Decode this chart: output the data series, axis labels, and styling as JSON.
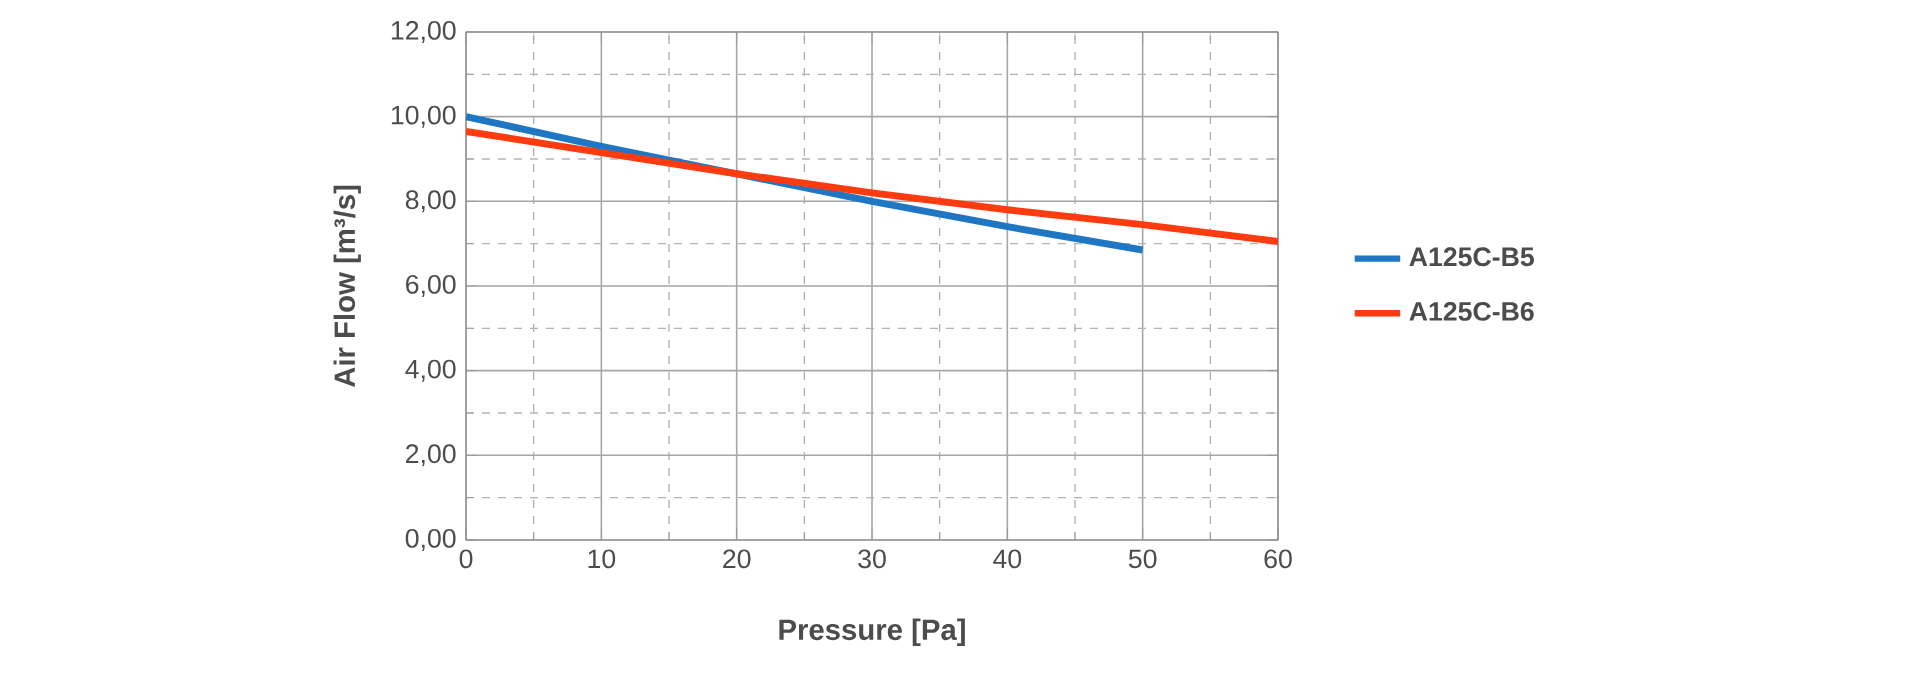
{
  "chart_data": {
    "type": "line",
    "xlabel": "Pressure [Pa]",
    "ylabel": "Air Flow [m³/s]",
    "series": [
      {
        "name": "A125C-B5",
        "color": "#1f77c4",
        "x": [
          0,
          10,
          20,
          30,
          40,
          50
        ],
        "values": [
          10.0,
          9.3,
          8.65,
          8.0,
          7.4,
          6.85
        ]
      },
      {
        "name": "A125C-B6",
        "color": "#ff3b0f",
        "x": [
          0,
          10,
          20,
          30,
          40,
          50,
          60
        ],
        "values": [
          9.65,
          9.15,
          8.65,
          8.2,
          7.8,
          7.45,
          7.05
        ]
      }
    ],
    "xlim": [
      0,
      60
    ],
    "xticks": [
      0,
      {
        "value": 5,
        "label": null
      },
      10,
      {
        "value": 15,
        "label": null
      },
      20,
      {
        "value": 25,
        "label": null
      },
      30,
      {
        "value": 35,
        "label": null
      },
      40,
      {
        "value": 45,
        "label": null
      },
      50,
      {
        "value": 55,
        "label": null
      },
      60
    ],
    "ylim": [
      0,
      12
    ],
    "yticks": [
      {
        "value": 0,
        "label": "0,00"
      },
      {
        "value": 1,
        "label": null
      },
      {
        "value": 2,
        "label": "2,00"
      },
      {
        "value": 3,
        "label": null
      },
      {
        "value": 4,
        "label": "4,00"
      },
      {
        "value": 5,
        "label": null
      },
      {
        "value": 6,
        "label": "6,00"
      },
      {
        "value": 7,
        "label": null
      },
      {
        "value": 8,
        "label": "8,00"
      },
      {
        "value": 9,
        "label": null
      },
      {
        "value": 10,
        "label": "10,00"
      },
      {
        "value": 11,
        "label": null
      },
      {
        "value": 12,
        "label": "12,00"
      }
    ],
    "grid": true,
    "legend": "right",
    "marker": "none",
    "line_style": "solid"
  }
}
